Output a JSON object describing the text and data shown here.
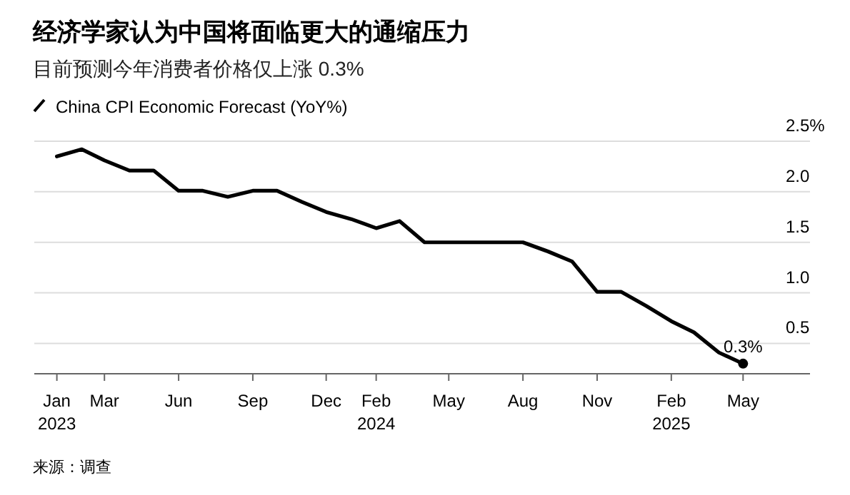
{
  "chart_data": {
    "type": "line",
    "title": "经济学家认为中国将面临更大的通缩压力",
    "subtitle": "目前预测今年消费者价格仅上涨 0.3%",
    "x": [
      "2023-01",
      "2023-02",
      "2023-03",
      "2023-04",
      "2023-05",
      "2023-06",
      "2023-07",
      "2023-08",
      "2023-09",
      "2023-10",
      "2023-11",
      "2023-12",
      "2024-01",
      "2024-02",
      "2024-03",
      "2024-04",
      "2024-05",
      "2024-06",
      "2024-07",
      "2024-08",
      "2024-09",
      "2024-10",
      "2024-11",
      "2024-12",
      "2025-01",
      "2025-02",
      "2025-03",
      "2025-04",
      "2025-05"
    ],
    "series": [
      {
        "name": "China CPI Economic Forecast (YoY%)",
        "color": "#000000",
        "values": [
          2.35,
          2.42,
          2.31,
          2.21,
          2.21,
          2.01,
          2.01,
          1.95,
          2.01,
          2.01,
          1.9,
          1.8,
          1.73,
          1.64,
          1.71,
          1.5,
          1.5,
          1.5,
          1.5,
          1.5,
          1.41,
          1.31,
          1.01,
          1.01,
          0.87,
          0.72,
          0.61,
          0.41,
          0.3
        ]
      },
      {
        "type": "scatter",
        "marker": "circle",
        "color": "#000000",
        "x": [
          "2025-05"
        ],
        "values": [
          0.3
        ]
      }
    ],
    "xlim": [
      "2022-12-04",
      "2025-07-23"
    ],
    "xticks": [
      {
        "value": "2023-01",
        "label": "Jan\n2023"
      },
      {
        "value": "2023-03",
        "label": "Mar"
      },
      {
        "value": "2023-06",
        "label": "Jun"
      },
      {
        "value": "2023-09",
        "label": "Sep"
      },
      {
        "value": "2023-12",
        "label": "Dec"
      },
      {
        "value": "2024-02",
        "label": "Feb\n2024"
      },
      {
        "value": "2024-05",
        "label": "May"
      },
      {
        "value": "2024-08",
        "label": "Aug"
      },
      {
        "value": "2024-11",
        "label": "Nov"
      },
      {
        "value": "2025-02",
        "label": "Feb\n2025"
      },
      {
        "value": "2025-05",
        "label": "May"
      }
    ],
    "ylim": [
      0.2,
      2.5
    ],
    "yticks": [
      {
        "value": 2.5,
        "label": "2.5%"
      },
      {
        "value": 2.0,
        "label": "2.0"
      },
      {
        "value": 1.5,
        "label": "1.5"
      },
      {
        "value": 1.0,
        "label": "1.0"
      },
      {
        "value": 0.5,
        "label": "0.5"
      }
    ],
    "grid": "y",
    "legend": "top left",
    "line_style": "solid",
    "annotations": [
      {
        "text": "0.3%",
        "x": "2025-05",
        "y": 0.3
      },
      "来源：调查"
    ]
  }
}
